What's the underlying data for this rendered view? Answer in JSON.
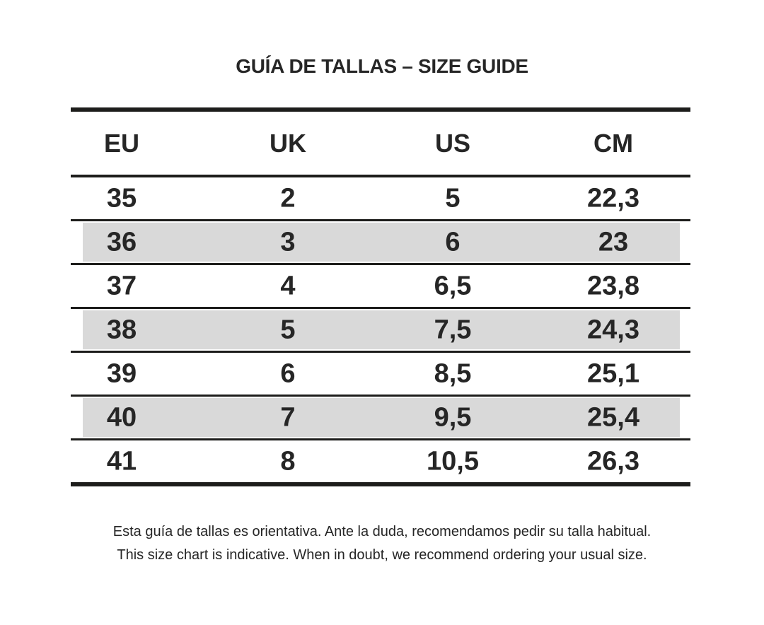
{
  "chart_data": {
    "type": "table",
    "title": "GUÍA DE TALLAS – SIZE GUIDE",
    "columns": [
      "EU",
      "UK",
      "US",
      "CM"
    ],
    "rows": [
      [
        "35",
        "2",
        "5",
        "22,3"
      ],
      [
        "36",
        "3",
        "6",
        "23"
      ],
      [
        "37",
        "4",
        "6,5",
        "23,8"
      ],
      [
        "38",
        "5",
        "7,5",
        "24,3"
      ],
      [
        "39",
        "6",
        "8,5",
        "25,1"
      ],
      [
        "40",
        "7",
        "9,5",
        "25,4"
      ],
      [
        "41",
        "8",
        "10,5",
        "26,3"
      ]
    ],
    "highlighted_rows": [
      1,
      3,
      5
    ],
    "notes": [
      "Esta guía de tallas es orientativa. Ante la duda, recomendamos pedir su talla habitual.",
      "This size chart is indicative. When in doubt, we recommend ordering your usual size."
    ]
  },
  "colors": {
    "background": "#ffffff",
    "text": "#262626",
    "line": "#1d1d1b",
    "row_highlight": "#d9d9d9"
  }
}
